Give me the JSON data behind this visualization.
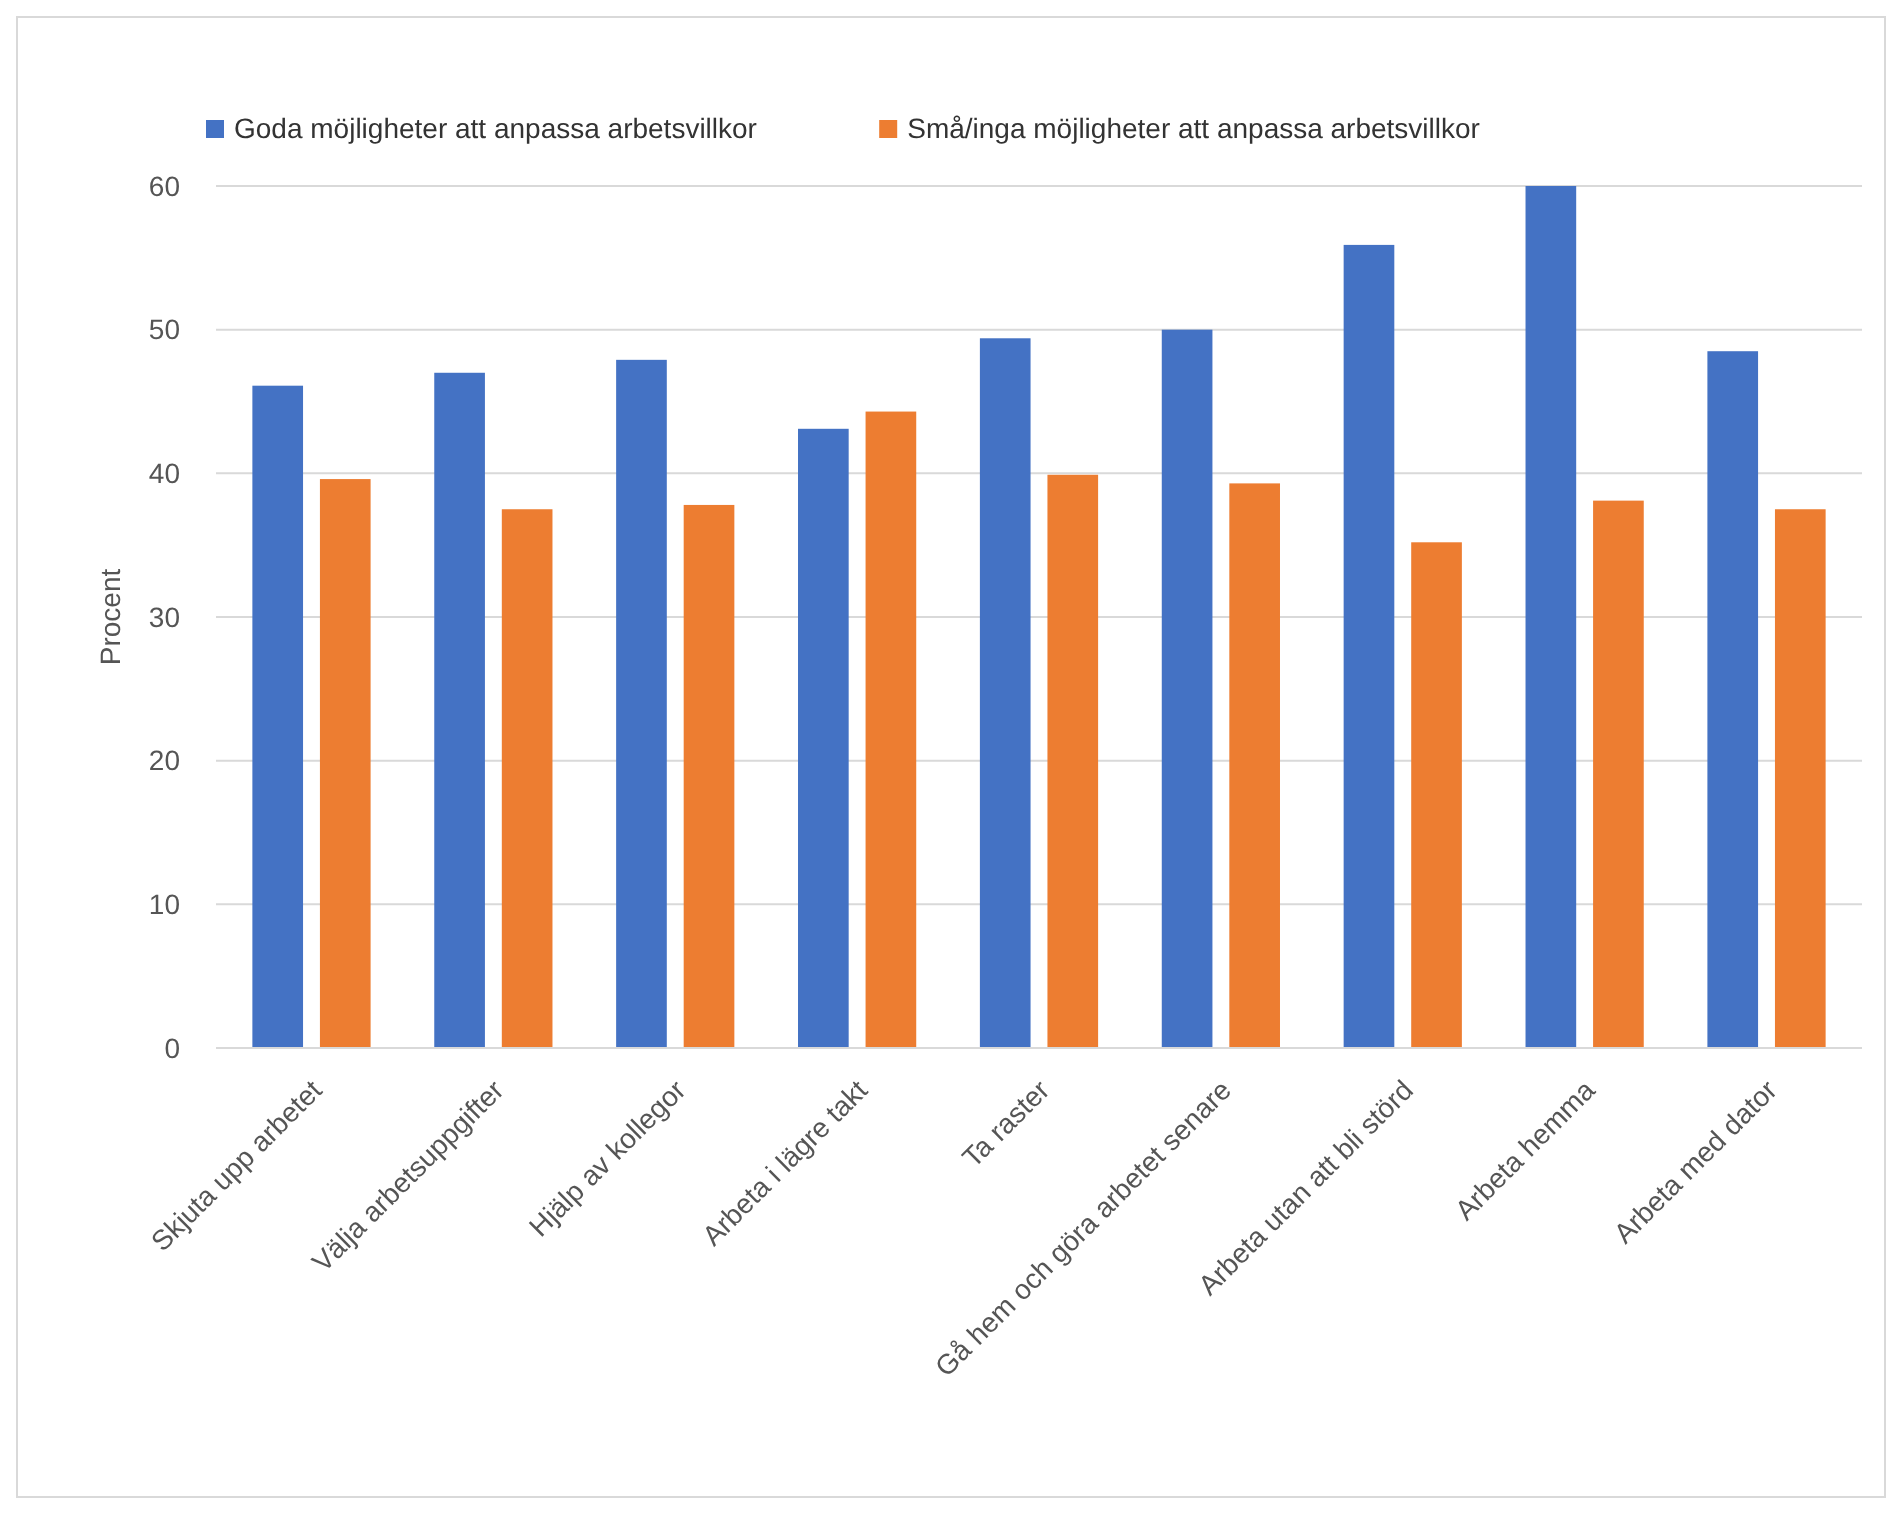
{
  "chart_data": {
    "type": "bar",
    "ylabel": "Procent",
    "categories": [
      "Skjuta upp arbetet",
      "Välja arbetsuppgifter",
      "Hjälp av kollegor",
      "Arbeta i lägre takt",
      "Ta raster",
      "Gå hem och göra arbetet senare",
      "Arbeta utan att bli störd",
      "Arbeta hemma",
      "Arbeta med dator"
    ],
    "series": [
      {
        "name": "Goda möjligheter att anpassa arbetsvillkor",
        "color": "#4472c4",
        "values": [
          46.1,
          47,
          47.9,
          43.1,
          49.4,
          50,
          55.9,
          60,
          48.5
        ]
      },
      {
        "name": "Små/inga möjligheter att anpassa arbetsvillkor",
        "color": "#ed7d31",
        "values": [
          39.6,
          37.5,
          37.8,
          44.3,
          39.9,
          39.3,
          35.2,
          38.1,
          37.5
        ]
      }
    ],
    "ylim": [
      0,
      60
    ],
    "yticks": [
      0,
      10,
      20,
      30,
      40,
      50,
      60
    ],
    "grid": "y",
    "legend": "top"
  }
}
